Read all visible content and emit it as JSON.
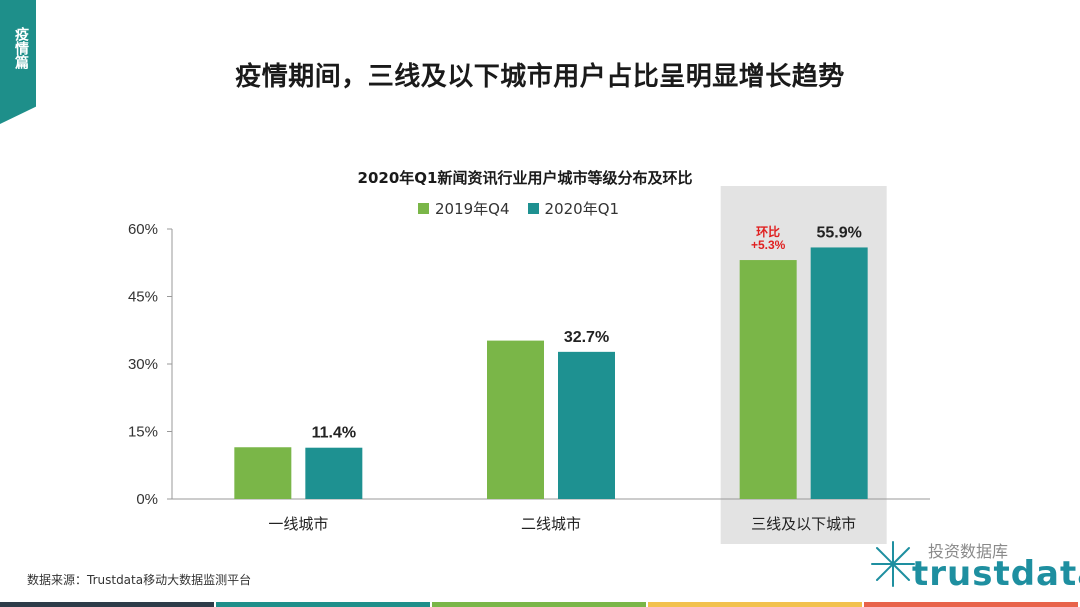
{
  "section_tab": "疫情篇",
  "page_title": "疫情期间，三线及以下城市用户占比呈明显增长趋势",
  "source_note": "数据来源：Trustdata移动大数据监测平台",
  "brand": {
    "name": "trustdata",
    "chinese": "投资数据库"
  },
  "colors": {
    "series_2019Q4": "#7ab648",
    "series_2020Q1": "#1e9191",
    "highlight_bg": "#e3e3e3",
    "annotation_red": "#e02020",
    "footer": [
      "#2d3b48",
      "#1e8f8a",
      "#7ab648",
      "#f2c14e",
      "#e8634a"
    ]
  },
  "chart_data": {
    "type": "bar",
    "title": "2020年Q1新闻资讯行业用户城市等级分布及环比",
    "categories": [
      "一线城市",
      "二线城市",
      "三线及以下城市"
    ],
    "series": [
      {
        "name": "2019年Q4",
        "values": [
          11.5,
          35.2,
          53.1
        ]
      },
      {
        "name": "2020年Q1",
        "values": [
          11.4,
          32.7,
          55.9
        ]
      }
    ],
    "data_labels": [
      "11.4%",
      "32.7%",
      "55.9%"
    ],
    "yticks": [
      "0%",
      "15%",
      "30%",
      "45%",
      "60%"
    ],
    "ylim": [
      0,
      60
    ],
    "highlight_category": "三线及以下城市",
    "annotation": {
      "label": "环比",
      "value": "+5.3%"
    }
  }
}
